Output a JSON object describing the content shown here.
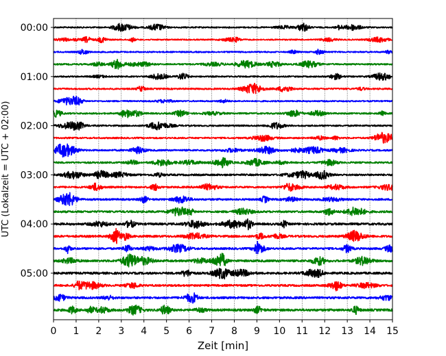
{
  "chart_data": {
    "type": "line",
    "xlabel": "Zeit  [min]",
    "ylabel": "UTC (Lokalzeit = UTC + 02:00)",
    "xlim": [
      0,
      15
    ],
    "x_ticks": [
      "0",
      "1",
      "2",
      "3",
      "4",
      "5",
      "6",
      "7",
      "8",
      "9",
      "10",
      "11",
      "12",
      "13",
      "14",
      "15"
    ],
    "y_ticks": [
      "00:00",
      "01:00",
      "02:00",
      "03:00",
      "04:00",
      "05:00"
    ],
    "trace_minutes": 15,
    "traces_per_hour": 4,
    "trace_count": 24,
    "vertical_grid": true,
    "grid_style": "dotted",
    "colors": [
      "#000000",
      "#ff0000",
      "#0000ff",
      "#008000"
    ],
    "series": [
      {
        "start": "00:00",
        "amp": 0.9
      },
      {
        "start": "00:15",
        "amp": 0.8
      },
      {
        "start": "00:30",
        "amp": 0.9
      },
      {
        "start": "00:45",
        "amp": 1.0
      },
      {
        "start": "01:00",
        "amp": 0.9
      },
      {
        "start": "01:15",
        "amp": 1.0
      },
      {
        "start": "01:30",
        "amp": 0.9
      },
      {
        "start": "01:45",
        "amp": 1.0
      },
      {
        "start": "02:00",
        "amp": 1.0
      },
      {
        "start": "02:15",
        "amp": 1.0
      },
      {
        "start": "02:30",
        "amp": 1.1
      },
      {
        "start": "02:45",
        "amp": 1.1
      },
      {
        "start": "03:00",
        "amp": 1.2
      },
      {
        "start": "03:15",
        "amp": 1.2
      },
      {
        "start": "03:30",
        "amp": 1.2
      },
      {
        "start": "03:45",
        "amp": 1.3
      },
      {
        "start": "04:00",
        "amp": 1.4
      },
      {
        "start": "04:15",
        "amp": 1.4
      },
      {
        "start": "04:30",
        "amp": 1.3
      },
      {
        "start": "04:45",
        "amp": 1.4
      },
      {
        "start": "05:00",
        "amp": 1.4
      },
      {
        "start": "05:15",
        "amp": 1.3
      },
      {
        "start": "05:30",
        "amp": 1.4
      },
      {
        "start": "05:45",
        "amp": 1.5
      }
    ]
  }
}
